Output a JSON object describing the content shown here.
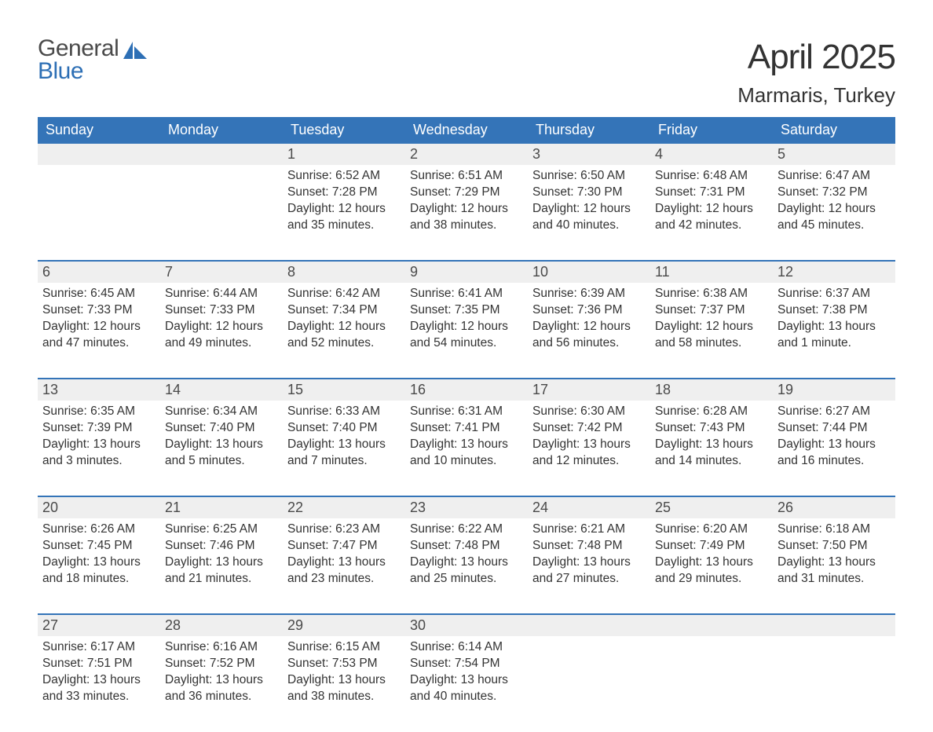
{
  "logo": {
    "line1": "General",
    "line2": "Blue",
    "shape_color": "#2d6fb5",
    "text_gray": "#4a4a4a"
  },
  "title": "April 2025",
  "subtitle": "Marmaris, Turkey",
  "colors": {
    "header_bg": "#3474b8",
    "header_text": "#ffffff",
    "daynum_bg": "#efefef",
    "row_border": "#3474b8",
    "body_text": "#333333",
    "page_bg": "#ffffff"
  },
  "weekdays": [
    "Sunday",
    "Monday",
    "Tuesday",
    "Wednesday",
    "Thursday",
    "Friday",
    "Saturday"
  ],
  "weeks": [
    {
      "nums": [
        "",
        "",
        "1",
        "2",
        "3",
        "4",
        "5"
      ],
      "cells": [
        "",
        "",
        "Sunrise: 6:52 AM\nSunset: 7:28 PM\nDaylight: 12 hours and 35 minutes.",
        "Sunrise: 6:51 AM\nSunset: 7:29 PM\nDaylight: 12 hours and 38 minutes.",
        "Sunrise: 6:50 AM\nSunset: 7:30 PM\nDaylight: 12 hours and 40 minutes.",
        "Sunrise: 6:48 AM\nSunset: 7:31 PM\nDaylight: 12 hours and 42 minutes.",
        "Sunrise: 6:47 AM\nSunset: 7:32 PM\nDaylight: 12 hours and 45 minutes."
      ]
    },
    {
      "nums": [
        "6",
        "7",
        "8",
        "9",
        "10",
        "11",
        "12"
      ],
      "cells": [
        "Sunrise: 6:45 AM\nSunset: 7:33 PM\nDaylight: 12 hours and 47 minutes.",
        "Sunrise: 6:44 AM\nSunset: 7:33 PM\nDaylight: 12 hours and 49 minutes.",
        "Sunrise: 6:42 AM\nSunset: 7:34 PM\nDaylight: 12 hours and 52 minutes.",
        "Sunrise: 6:41 AM\nSunset: 7:35 PM\nDaylight: 12 hours and 54 minutes.",
        "Sunrise: 6:39 AM\nSunset: 7:36 PM\nDaylight: 12 hours and 56 minutes.",
        "Sunrise: 6:38 AM\nSunset: 7:37 PM\nDaylight: 12 hours and 58 minutes.",
        "Sunrise: 6:37 AM\nSunset: 7:38 PM\nDaylight: 13 hours and 1 minute."
      ]
    },
    {
      "nums": [
        "13",
        "14",
        "15",
        "16",
        "17",
        "18",
        "19"
      ],
      "cells": [
        "Sunrise: 6:35 AM\nSunset: 7:39 PM\nDaylight: 13 hours and 3 minutes.",
        "Sunrise: 6:34 AM\nSunset: 7:40 PM\nDaylight: 13 hours and 5 minutes.",
        "Sunrise: 6:33 AM\nSunset: 7:40 PM\nDaylight: 13 hours and 7 minutes.",
        "Sunrise: 6:31 AM\nSunset: 7:41 PM\nDaylight: 13 hours and 10 minutes.",
        "Sunrise: 6:30 AM\nSunset: 7:42 PM\nDaylight: 13 hours and 12 minutes.",
        "Sunrise: 6:28 AM\nSunset: 7:43 PM\nDaylight: 13 hours and 14 minutes.",
        "Sunrise: 6:27 AM\nSunset: 7:44 PM\nDaylight: 13 hours and 16 minutes."
      ]
    },
    {
      "nums": [
        "20",
        "21",
        "22",
        "23",
        "24",
        "25",
        "26"
      ],
      "cells": [
        "Sunrise: 6:26 AM\nSunset: 7:45 PM\nDaylight: 13 hours and 18 minutes.",
        "Sunrise: 6:25 AM\nSunset: 7:46 PM\nDaylight: 13 hours and 21 minutes.",
        "Sunrise: 6:23 AM\nSunset: 7:47 PM\nDaylight: 13 hours and 23 minutes.",
        "Sunrise: 6:22 AM\nSunset: 7:48 PM\nDaylight: 13 hours and 25 minutes.",
        "Sunrise: 6:21 AM\nSunset: 7:48 PM\nDaylight: 13 hours and 27 minutes.",
        "Sunrise: 6:20 AM\nSunset: 7:49 PM\nDaylight: 13 hours and 29 minutes.",
        "Sunrise: 6:18 AM\nSunset: 7:50 PM\nDaylight: 13 hours and 31 minutes."
      ]
    },
    {
      "nums": [
        "27",
        "28",
        "29",
        "30",
        "",
        "",
        ""
      ],
      "cells": [
        "Sunrise: 6:17 AM\nSunset: 7:51 PM\nDaylight: 13 hours and 33 minutes.",
        "Sunrise: 6:16 AM\nSunset: 7:52 PM\nDaylight: 13 hours and 36 minutes.",
        "Sunrise: 6:15 AM\nSunset: 7:53 PM\nDaylight: 13 hours and 38 minutes.",
        "Sunrise: 6:14 AM\nSunset: 7:54 PM\nDaylight: 13 hours and 40 minutes.",
        "",
        "",
        ""
      ]
    }
  ]
}
